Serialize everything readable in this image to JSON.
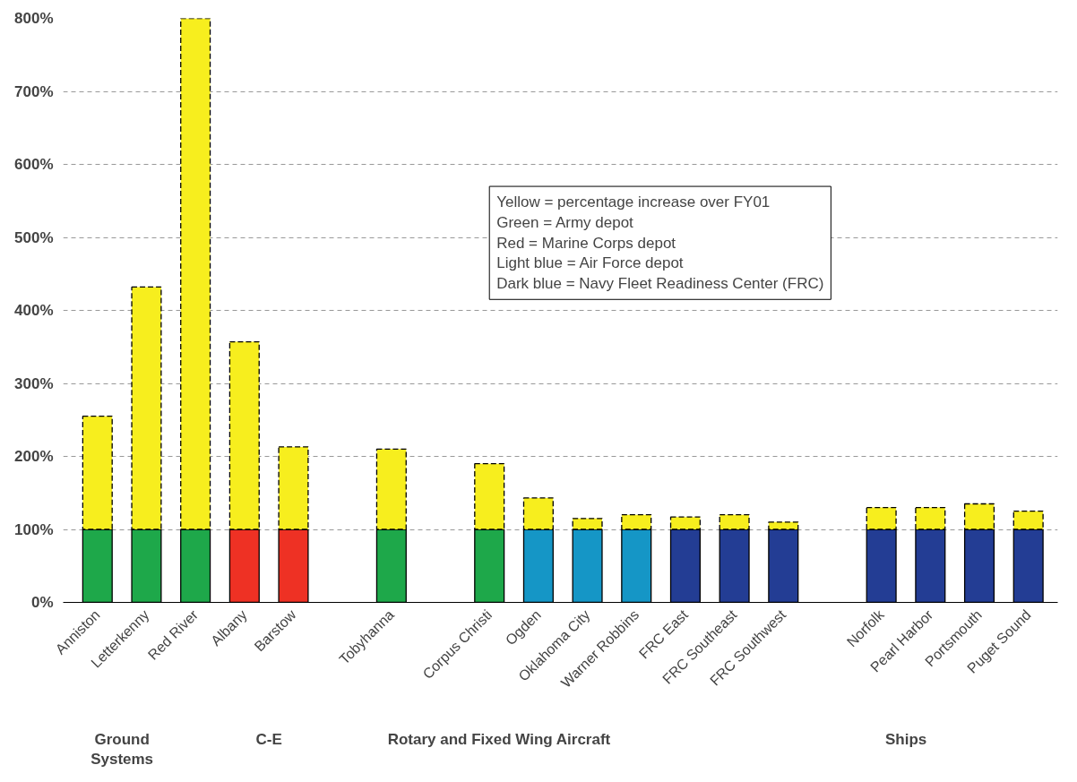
{
  "chart_data": {
    "type": "bar",
    "stacked": true,
    "grid": "y",
    "categories": [
      "Anniston",
      "Letterkenny",
      "Red River",
      "Albany",
      "Barstow",
      null,
      "Tobyhanna",
      null,
      "Corpus Christi",
      "Ogden",
      "Oklahoma City",
      "Warner Robbins",
      "FRC East",
      "FRC Southeast",
      "FRC Southwest",
      null,
      "Norfolk",
      "Pearl Harbor",
      "Portsmouth",
      "Puget Sound"
    ],
    "series": [
      {
        "colors": [
          "#1ea84a",
          "#1ea84a",
          "#1ea84a",
          "#ee3124",
          "#ee3124",
          null,
          "#1ea84a",
          null,
          "#1ea84a",
          "#1596c6",
          "#1596c6",
          "#1596c6",
          "#233d94",
          "#233d94",
          "#233d94",
          null,
          "#233d94",
          "#233d94",
          "#233d94",
          "#233d94"
        ],
        "values": [
          100,
          100,
          100,
          100,
          100,
          null,
          100,
          null,
          100,
          100,
          100,
          100,
          100,
          100,
          100,
          null,
          100,
          100,
          100,
          100
        ]
      },
      {
        "color": "#f7ee1e",
        "line_style": "dashed",
        "values": [
          155,
          332,
          700,
          257,
          113,
          null,
          110,
          null,
          90,
          43,
          15,
          20,
          17,
          20,
          10,
          null,
          30,
          30,
          35,
          25
        ]
      }
    ],
    "ylim": [
      0,
      800
    ],
    "yticks": [
      {
        "value": 0,
        "label": "0%"
      },
      {
        "value": 100,
        "label": "100%"
      },
      {
        "value": 200,
        "label": "200%"
      },
      {
        "value": 300,
        "label": "300%"
      },
      {
        "value": 400,
        "label": "400%"
      },
      {
        "value": 500,
        "label": "500%"
      },
      {
        "value": 600,
        "label": "600%"
      },
      {
        "value": 700,
        "label": "700%"
      },
      {
        "value": 800,
        "label": "800%"
      }
    ],
    "annotations": [
      "Yellow = percentage increase over FY01\nGreen = Army depot\nRed = Marine Corps depot\nLight blue = Air Force depot\nDark blue = Navy Fleet Readiness Center (FRC)",
      "Ground\nSystems",
      "C-E",
      "Rotary and Fixed Wing Aircraft",
      "Ships"
    ]
  }
}
